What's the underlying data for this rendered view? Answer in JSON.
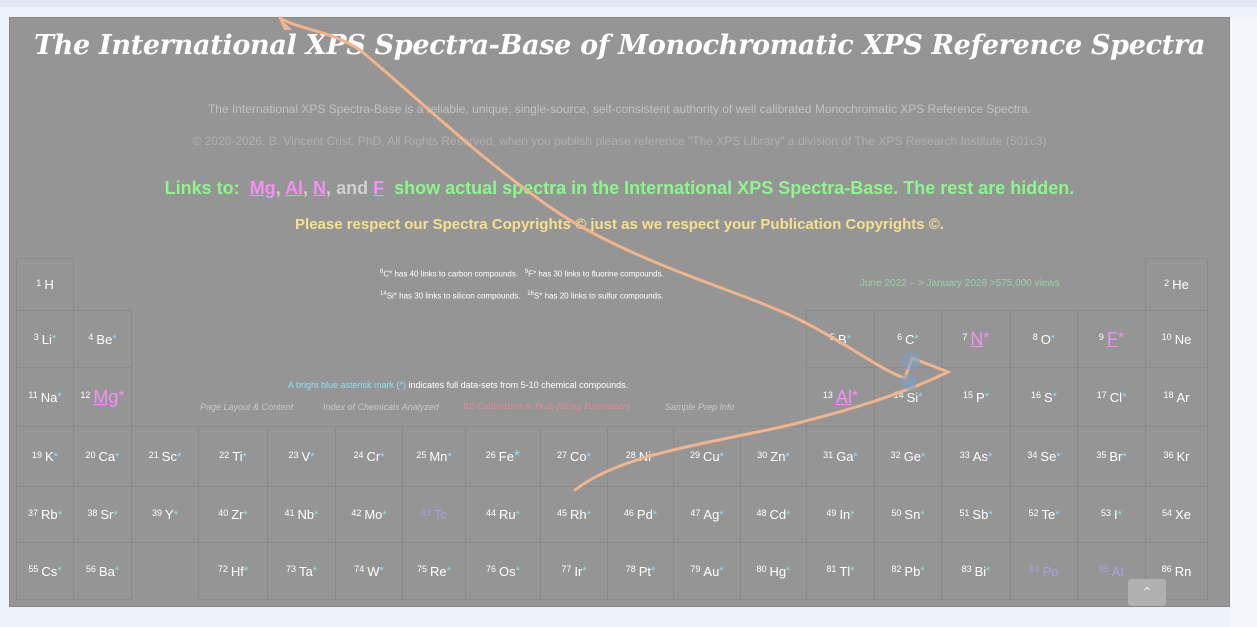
{
  "header": {
    "title": "The International XPS Spectra-Base of Monochromatic XPS Reference Spectra",
    "subtitle": "The International XPS Spectra-Base is a reliable, unique, single-source, self-consistent authority of well calibrated Monochromatic XPS Reference Spectra.",
    "copyright": "©  2020-2026, B. Vincent Crist, PhD, All Rights Reserved, when you publish please reference \"The XPS Library\"  a division of The XPS Research Institute (501c3)",
    "links_prefix": "Links to:",
    "links": [
      "Mg",
      "Al",
      "N",
      "F"
    ],
    "and": "and",
    "links_suffix": "show actual spectra in the International XPS Spectra-Base. The rest are hidden.",
    "respect": "Please respect our Spectra Copyrights © just as we respect your Publication Copyrights ©."
  },
  "notes": {
    "carbon": {
      "sup": "6",
      "text": "C* has 40 links to carbon compounds."
    },
    "fluorine": {
      "sup": "9",
      "text": "F* has 30 links to fluorine compounds."
    },
    "silicon": {
      "sup": "14",
      "text": "Si* has 30 links to silicon compounds."
    },
    "sulfur": {
      "sup": "16",
      "text": "S* has 20 links to sulfur compounds."
    },
    "views": "June 2022 – > January 2026   >575,000 views",
    "asterisk_colored": "A bright blue asterisk mark (*)",
    "asterisk_rest": " indicates full data-sets from 5-10 chemical compounds."
  },
  "nav": [
    "Page Layout & Content",
    "Index of Chemicals Analyzed",
    "BE Calibration & Peak-fitting Parameters",
    "Sample Prep  Info"
  ],
  "scroll_top": "⌃",
  "elements": [
    {
      "n": "1",
      "s": "H",
      "a": "",
      "r": 0,
      "c": 0
    },
    {
      "n": "2",
      "s": "He",
      "a": "",
      "r": 0,
      "c": 17
    },
    {
      "n": "3",
      "s": "Li",
      "a": "*",
      "r": 1,
      "c": 0
    },
    {
      "n": "4",
      "s": "Be",
      "a": "*",
      "r": 1,
      "c": 1
    },
    {
      "n": "5",
      "s": "B",
      "a": "*",
      "r": 1,
      "c": 12
    },
    {
      "n": "6",
      "s": "C",
      "a": "*",
      "r": 1,
      "c": 13
    },
    {
      "n": "7",
      "s": "N",
      "a": "*",
      "r": 1,
      "c": 14,
      "t": "link"
    },
    {
      "n": "8",
      "s": "O",
      "a": "*",
      "r": 1,
      "c": 15
    },
    {
      "n": "9",
      "s": "F",
      "a": "*",
      "r": 1,
      "c": 16,
      "t": "link"
    },
    {
      "n": "10",
      "s": "Ne",
      "a": "",
      "r": 1,
      "c": 17
    },
    {
      "n": "11",
      "s": "Na",
      "a": "*",
      "r": 2,
      "c": 0
    },
    {
      "n": "12",
      "s": "Mg",
      "a": "*",
      "r": 2,
      "c": 1,
      "t": "link"
    },
    {
      "n": "13",
      "s": "Al",
      "a": "*",
      "r": 2,
      "c": 12,
      "t": "link"
    },
    {
      "n": "14",
      "s": "Si",
      "a": "*",
      "r": 2,
      "c": 13
    },
    {
      "n": "15",
      "s": "P",
      "a": "*",
      "r": 2,
      "c": 14
    },
    {
      "n": "16",
      "s": "S",
      "a": "*",
      "r": 2,
      "c": 15
    },
    {
      "n": "17",
      "s": "Cl",
      "a": "*",
      "r": 2,
      "c": 16
    },
    {
      "n": "18",
      "s": "Ar",
      "a": "",
      "r": 2,
      "c": 17
    },
    {
      "n": "19",
      "s": "K",
      "a": "*",
      "r": 3,
      "c": 0
    },
    {
      "n": "20",
      "s": "Ca",
      "a": "*",
      "r": 3,
      "c": 1
    },
    {
      "n": "21",
      "s": "Sc",
      "a": "*",
      "r": 3,
      "c": 2
    },
    {
      "n": "22",
      "s": "Ti",
      "a": "*",
      "r": 3,
      "c": 3
    },
    {
      "n": "23",
      "s": "V",
      "a": "*",
      "r": 3,
      "c": 4
    },
    {
      "n": "24",
      "s": "Cr",
      "a": "*",
      "r": 3,
      "c": 5
    },
    {
      "n": "25",
      "s": "Mn",
      "a": "*",
      "r": 3,
      "c": 6
    },
    {
      "n": "26",
      "s": "Fe",
      "a": "*",
      "r": 3,
      "c": 7,
      "t": "big"
    },
    {
      "n": "27",
      "s": "Co",
      "a": "*",
      "r": 3,
      "c": 8
    },
    {
      "n": "28",
      "s": "Ni",
      "a": "*",
      "r": 3,
      "c": 9
    },
    {
      "n": "29",
      "s": "Cu",
      "a": "*",
      "r": 3,
      "c": 10
    },
    {
      "n": "30",
      "s": "Zn",
      "a": "*",
      "r": 3,
      "c": 11
    },
    {
      "n": "31",
      "s": "Ga",
      "a": "*",
      "r": 3,
      "c": 12
    },
    {
      "n": "32",
      "s": "Ge",
      "a": "*",
      "r": 3,
      "c": 13
    },
    {
      "n": "33",
      "s": "As",
      "a": "*",
      "r": 3,
      "c": 14
    },
    {
      "n": "34",
      "s": "Se",
      "a": "*",
      "r": 3,
      "c": 15
    },
    {
      "n": "35",
      "s": "Br",
      "a": "*",
      "r": 3,
      "c": 16
    },
    {
      "n": "36",
      "s": "Kr",
      "a": "",
      "r": 3,
      "c": 17
    },
    {
      "n": "37",
      "s": "Rb",
      "a": "*",
      "r": 4,
      "c": 0
    },
    {
      "n": "38",
      "s": "Sr",
      "a": "*",
      "r": 4,
      "c": 1
    },
    {
      "n": "39",
      "s": "Y",
      "a": "*",
      "r": 4,
      "c": 2
    },
    {
      "n": "40",
      "s": "Zr",
      "a": "*",
      "r": 4,
      "c": 3
    },
    {
      "n": "41",
      "s": "Nb",
      "a": "*",
      "r": 4,
      "c": 4
    },
    {
      "n": "42",
      "s": "Mo",
      "a": "*",
      "r": 4,
      "c": 5
    },
    {
      "n": "43",
      "s": "Tc",
      "a": "",
      "r": 4,
      "c": 6,
      "t": "dim"
    },
    {
      "n": "44",
      "s": "Ru",
      "a": "*",
      "r": 4,
      "c": 7
    },
    {
      "n": "45",
      "s": "Rh",
      "a": "*",
      "r": 4,
      "c": 8
    },
    {
      "n": "46",
      "s": "Pd",
      "a": "*",
      "r": 4,
      "c": 9
    },
    {
      "n": "47",
      "s": "Ag",
      "a": "*",
      "r": 4,
      "c": 10
    },
    {
      "n": "48",
      "s": "Cd",
      "a": "*",
      "r": 4,
      "c": 11
    },
    {
      "n": "49",
      "s": "In",
      "a": "*",
      "r": 4,
      "c": 12
    },
    {
      "n": "50",
      "s": "Sn",
      "a": "*",
      "r": 4,
      "c": 13
    },
    {
      "n": "51",
      "s": "Sb",
      "a": "*",
      "r": 4,
      "c": 14
    },
    {
      "n": "52",
      "s": "Te",
      "a": "*",
      "r": 4,
      "c": 15
    },
    {
      "n": "53",
      "s": "I",
      "a": "*",
      "r": 4,
      "c": 16
    },
    {
      "n": "54",
      "s": "Xe",
      "a": "",
      "r": 4,
      "c": 17
    },
    {
      "n": "55",
      "s": "Cs",
      "a": "*",
      "r": 5,
      "c": 0
    },
    {
      "n": "56",
      "s": "Ba",
      "a": "*",
      "r": 5,
      "c": 1
    },
    {
      "n": "72",
      "s": "Hf",
      "a": "*",
      "r": 5,
      "c": 3
    },
    {
      "n": "73",
      "s": "Ta",
      "a": "*",
      "r": 5,
      "c": 4
    },
    {
      "n": "74",
      "s": "W",
      "a": "*",
      "r": 5,
      "c": 5
    },
    {
      "n": "75",
      "s": "Re",
      "a": "*",
      "r": 5,
      "c": 6
    },
    {
      "n": "76",
      "s": "Os",
      "a": "*",
      "r": 5,
      "c": 7
    },
    {
      "n": "77",
      "s": "Ir",
      "a": "*",
      "r": 5,
      "c": 8
    },
    {
      "n": "78",
      "s": "Pt",
      "a": "*",
      "r": 5,
      "c": 9
    },
    {
      "n": "79",
      "s": "Au",
      "a": "*",
      "r": 5,
      "c": 10
    },
    {
      "n": "80",
      "s": "Hg",
      "a": "*",
      "r": 5,
      "c": 11
    },
    {
      "n": "81",
      "s": "Tl",
      "a": "*",
      "r": 5,
      "c": 12
    },
    {
      "n": "82",
      "s": "Pb",
      "a": "*",
      "r": 5,
      "c": 13
    },
    {
      "n": "83",
      "s": "Bi",
      "a": "*",
      "r": 5,
      "c": 14
    },
    {
      "n": "84",
      "s": "Po",
      "a": "",
      "r": 5,
      "c": 15,
      "t": "dim"
    },
    {
      "n": "85",
      "s": "At",
      "a": "",
      "r": 5,
      "c": 16,
      "t": "dim"
    },
    {
      "n": "86",
      "s": "Rn",
      "a": "",
      "r": 5,
      "c": 17
    }
  ]
}
